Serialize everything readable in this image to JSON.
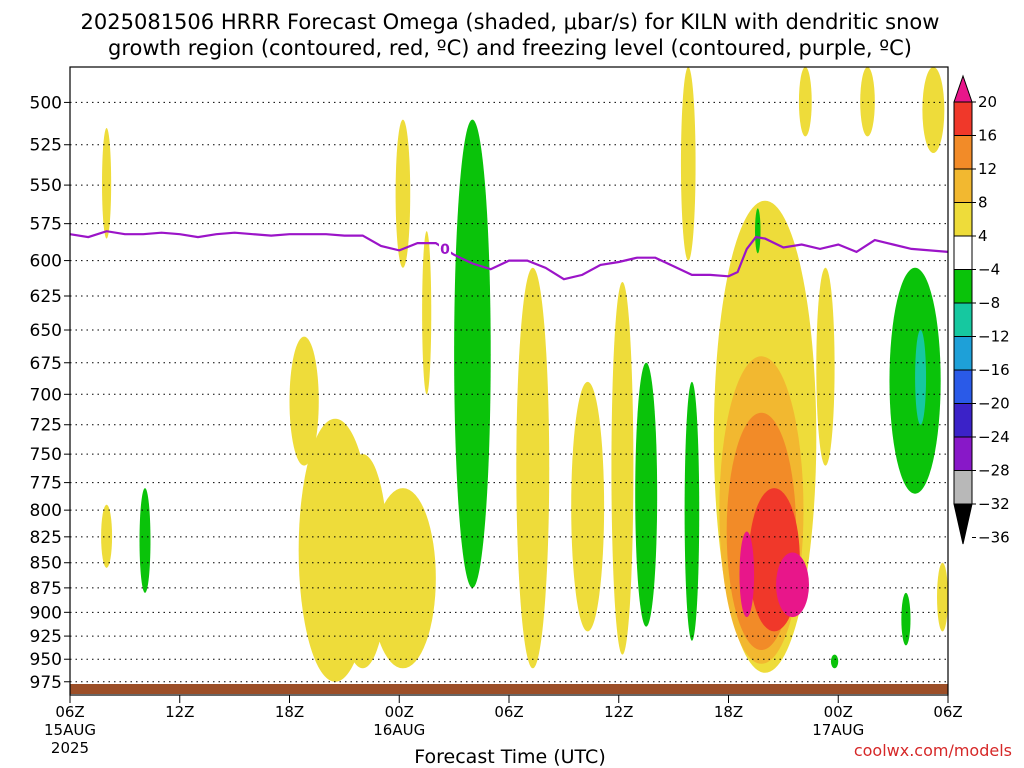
{
  "chart_data": {
    "type": "heatmap",
    "title_line1": "2025081506 HRRR Forecast Omega (shaded, μbar/s) for KILN with dendritic snow",
    "title_line2": "growth region (contoured, red, ºC) and freezing level (contoured, purple, ºC)",
    "xlabel": "Forecast Time (UTC)",
    "credit": "coolwx.com/models",
    "yticks": [
      500,
      525,
      550,
      575,
      600,
      625,
      650,
      675,
      700,
      725,
      750,
      775,
      800,
      825,
      850,
      875,
      900,
      925,
      950,
      975
    ],
    "y_scale": "log-pressure",
    "ylim": [
      480,
      990
    ],
    "x_hours_range": [
      0,
      48
    ],
    "xticks": [
      {
        "hour": 0,
        "line1": "06Z",
        "line2": "15AUG",
        "line3": "2025"
      },
      {
        "hour": 6,
        "line1": "12Z",
        "line2": "",
        "line3": ""
      },
      {
        "hour": 12,
        "line1": "18Z",
        "line2": "",
        "line3": ""
      },
      {
        "hour": 18,
        "line1": "00Z",
        "line2": "16AUG",
        "line3": ""
      },
      {
        "hour": 24,
        "line1": "06Z",
        "line2": "",
        "line3": ""
      },
      {
        "hour": 30,
        "line1": "12Z",
        "line2": "",
        "line3": ""
      },
      {
        "hour": 36,
        "line1": "18Z",
        "line2": "",
        "line3": ""
      },
      {
        "hour": 42,
        "line1": "00Z",
        "line2": "17AUG",
        "line3": ""
      },
      {
        "hour": 48,
        "line1": "06Z",
        "line2": "",
        "line3": ""
      }
    ],
    "grid": true,
    "colorbar": {
      "placement": "right",
      "labels": [
        "20",
        "16",
        "12",
        "8",
        "4",
        "−4",
        "−8",
        "−12",
        "−16",
        "−20",
        "−24",
        "−28",
        "−32",
        "−36"
      ],
      "colors": [
        "#e8168a",
        "#f0382a",
        "#f28b28",
        "#f2b830",
        "#eedc3a",
        "#ffffff",
        "#0ac30a",
        "#16c8a0",
        "#1ea0d8",
        "#2a5ae8",
        "#3b22c8",
        "#8818c8",
        "#b8b8b8",
        "#000000"
      ]
    },
    "freezing_level": {
      "color": "#9b14c8",
      "label": "0",
      "hours": [
        0,
        1,
        2,
        3,
        4,
        5,
        6,
        7,
        8,
        9,
        10,
        11,
        12,
        13,
        14,
        15,
        16,
        17,
        18,
        19,
        20,
        21,
        22,
        23,
        24,
        25,
        26,
        27,
        28,
        29,
        30,
        31,
        32,
        33,
        34,
        35,
        36,
        36.5,
        37,
        37.5,
        38,
        39,
        40,
        41,
        42,
        43,
        44,
        45,
        46,
        47,
        48
      ],
      "pressure": [
        582,
        584,
        580,
        582,
        582,
        581,
        582,
        584,
        582,
        581,
        582,
        583,
        582,
        582,
        582,
        583,
        583,
        590,
        593,
        588,
        588,
        596,
        602,
        606,
        600,
        600,
        605,
        613,
        610,
        603,
        601,
        598,
        598,
        604,
        610,
        610,
        611,
        608,
        592,
        584,
        585,
        591,
        589,
        592,
        589,
        594,
        586,
        589,
        592,
        593,
        594
      ]
    },
    "omega_regions": [
      {
        "color": "#eedc3a",
        "center_hour": 2.0,
        "top": 515,
        "bottom": 585,
        "half_width": 0.25
      },
      {
        "color": "#eedc3a",
        "center_hour": 2.0,
        "top": 795,
        "bottom": 855,
        "half_width": 0.3
      },
      {
        "color": "#0ac30a",
        "center_hour": 4.1,
        "top": 780,
        "bottom": 880,
        "half_width": 0.3
      },
      {
        "color": "#eedc3a",
        "center_hour": 12.8,
        "top": 655,
        "bottom": 760,
        "half_width": 0.8
      },
      {
        "color": "#eedc3a",
        "center_hour": 14.5,
        "top": 720,
        "bottom": 975,
        "half_width": 2.0
      },
      {
        "color": "#eedc3a",
        "center_hour": 16.0,
        "top": 750,
        "bottom": 960,
        "half_width": 1.4
      },
      {
        "color": "#eedc3a",
        "center_hour": 18.2,
        "top": 780,
        "bottom": 960,
        "half_width": 1.8
      },
      {
        "color": "#eedc3a",
        "center_hour": 18.2,
        "top": 510,
        "bottom": 605,
        "half_width": 0.4
      },
      {
        "color": "#eedc3a",
        "center_hour": 19.5,
        "top": 580,
        "bottom": 700,
        "half_width": 0.25
      },
      {
        "color": "#0ac30a",
        "center_hour": 22.0,
        "top": 510,
        "bottom": 875,
        "half_width": 1.0
      },
      {
        "color": "#eedc3a",
        "center_hour": 25.3,
        "top": 605,
        "bottom": 960,
        "half_width": 0.9
      },
      {
        "color": "#eedc3a",
        "center_hour": 28.3,
        "top": 690,
        "bottom": 920,
        "half_width": 0.9
      },
      {
        "color": "#eedc3a",
        "center_hour": 30.2,
        "top": 615,
        "bottom": 945,
        "half_width": 0.6
      },
      {
        "color": "#0ac30a",
        "center_hour": 31.5,
        "top": 675,
        "bottom": 915,
        "half_width": 0.6
      },
      {
        "color": "#0ac30a",
        "center_hour": 34.0,
        "top": 690,
        "bottom": 930,
        "half_width": 0.4
      },
      {
        "color": "#eedc3a",
        "center_hour": 33.8,
        "top": 480,
        "bottom": 600,
        "half_width": 0.4
      },
      {
        "color": "#eedc3a",
        "center_hour": 38.0,
        "top": 560,
        "bottom": 965,
        "half_width": 2.8
      },
      {
        "color": "#f2b830",
        "center_hour": 37.8,
        "top": 670,
        "bottom": 955,
        "half_width": 2.3
      },
      {
        "color": "#f28b28",
        "center_hour": 37.8,
        "top": 715,
        "bottom": 940,
        "half_width": 1.9
      },
      {
        "color": "#f0382a",
        "center_hour": 38.5,
        "top": 780,
        "bottom": 920,
        "half_width": 1.4
      },
      {
        "color": "#e8168a",
        "center_hour": 39.5,
        "top": 840,
        "bottom": 905,
        "half_width": 0.9
      },
      {
        "color": "#e8168a",
        "center_hour": 37.0,
        "top": 820,
        "bottom": 905,
        "half_width": 0.4
      },
      {
        "color": "#0ac30a",
        "center_hour": 37.6,
        "top": 565,
        "bottom": 595,
        "half_width": 0.15
      },
      {
        "color": "#eedc3a",
        "center_hour": 41.3,
        "top": 605,
        "bottom": 760,
        "half_width": 0.5
      },
      {
        "color": "#eedc3a",
        "center_hour": 40.2,
        "top": 480,
        "bottom": 520,
        "half_width": 0.35
      },
      {
        "color": "#eedc3a",
        "center_hour": 43.6,
        "top": 480,
        "bottom": 520,
        "half_width": 0.4
      },
      {
        "color": "#0ac30a",
        "center_hour": 41.8,
        "top": 945,
        "bottom": 960,
        "half_width": 0.2
      },
      {
        "color": "#0ac30a",
        "center_hour": 46.2,
        "top": 605,
        "bottom": 785,
        "half_width": 1.4
      },
      {
        "color": "#16c8a0",
        "center_hour": 46.5,
        "top": 650,
        "bottom": 725,
        "half_width": 0.3
      },
      {
        "color": "#0ac30a",
        "center_hour": 45.7,
        "top": 880,
        "bottom": 935,
        "half_width": 0.25
      },
      {
        "color": "#eedc3a",
        "center_hour": 47.2,
        "top": 480,
        "bottom": 530,
        "half_width": 0.6
      },
      {
        "color": "#eedc3a",
        "center_hour": 47.7,
        "top": 850,
        "bottom": 920,
        "half_width": 0.3
      }
    ]
  }
}
